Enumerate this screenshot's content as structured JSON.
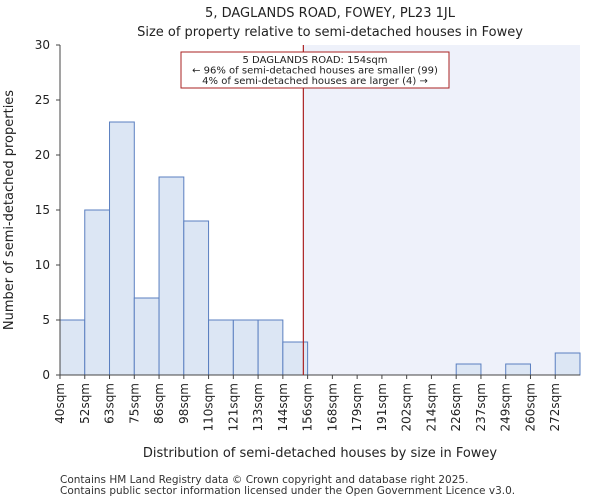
{
  "chart_data": {
    "type": "bar",
    "title": "5, DAGLANDS ROAD, FOWEY, PL23 1JL",
    "subtitle": "Size of property relative to semi-detached houses in Fowey",
    "xlabel": "Distribution of semi-detached houses by size in Fowey",
    "ylabel": "Number of semi-detached properties",
    "categories": [
      "40sqm",
      "52sqm",
      "63sqm",
      "75sqm",
      "86sqm",
      "98sqm",
      "110sqm",
      "121sqm",
      "133sqm",
      "144sqm",
      "156sqm",
      "168sqm",
      "179sqm",
      "191sqm",
      "202sqm",
      "214sqm",
      "226sqm",
      "237sqm",
      "249sqm",
      "260sqm",
      "272sqm"
    ],
    "values": [
      5,
      15,
      23,
      7,
      18,
      14,
      5,
      5,
      5,
      3,
      0,
      0,
      0,
      0,
      0,
      0,
      1,
      0,
      1,
      0,
      2
    ],
    "ylim": [
      0,
      30
    ],
    "yticks": [
      0,
      5,
      10,
      15,
      20,
      25,
      30
    ],
    "marker": {
      "value_sqm": 154,
      "label_line1": "5 DAGLANDS ROAD: 154sqm",
      "label_line2": "← 96% of semi-detached houses are smaller (99)",
      "label_line3": "4% of semi-detached houses are larger (4) →"
    },
    "colors": {
      "bar_fill": "#dce6f4",
      "bar_stroke": "#5a7fc0",
      "marker_line": "#aa2222",
      "highlight_region": "#eef1fa",
      "annotation_border": "#aa2222"
    }
  },
  "footer": {
    "line1": "Contains HM Land Registry data © Crown copyright and database right 2025.",
    "line2": "Contains public sector information licensed under the Open Government Licence v3.0."
  }
}
